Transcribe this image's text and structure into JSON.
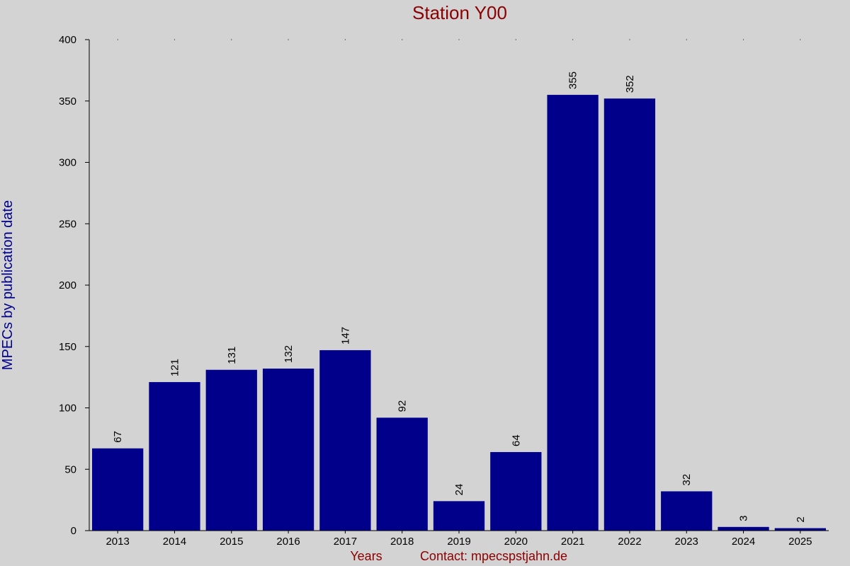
{
  "colors": {
    "background": "#d3d3d3",
    "bar": "#00008b",
    "title": "#8b0000",
    "ylabel": "#00008b",
    "footer": "#8b0000",
    "axis": "#000000"
  },
  "chart_data": {
    "type": "bar",
    "title": "Station Y00",
    "xlabel": "Years",
    "ylabel": "MPECs by publication date",
    "footer": "Contact: mpecspstjahn.de",
    "categories": [
      "2013",
      "2014",
      "2015",
      "2016",
      "2017",
      "2018",
      "2019",
      "2020",
      "2021",
      "2022",
      "2023",
      "2024",
      "2025"
    ],
    "values": [
      67,
      121,
      131,
      132,
      147,
      92,
      24,
      64,
      355,
      352,
      32,
      3,
      2
    ],
    "data_labels": [
      "67",
      "121",
      "131",
      "132",
      "147",
      "92",
      "24",
      "64",
      "355",
      "352",
      "32",
      "3",
      "2"
    ],
    "ylim": [
      0,
      400
    ],
    "yticks": [
      0,
      50,
      100,
      150,
      200,
      250,
      300,
      350,
      400
    ],
    "ytick_labels": [
      "0",
      "50",
      "100",
      "150",
      "200",
      "250",
      "300",
      "350",
      "400"
    ],
    "grid": false,
    "legend": "none"
  }
}
